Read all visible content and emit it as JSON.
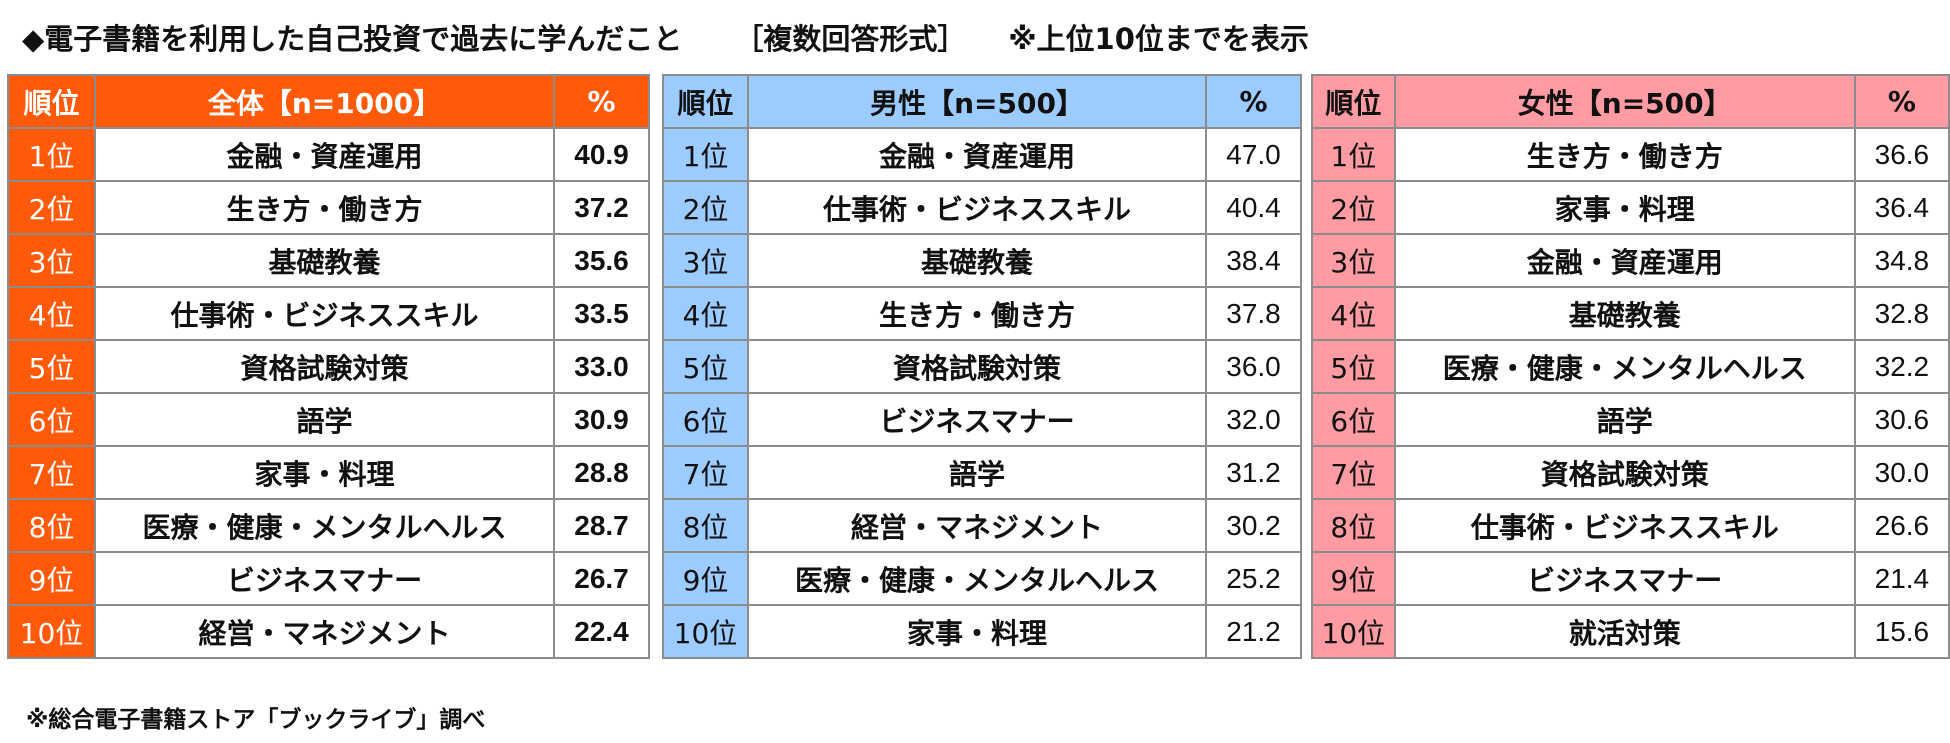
{
  "title": {
    "main": "◆電子書籍を利用した自己投資で過去に学んだこと",
    "format": "［複数回答形式］",
    "note": "※上位10位までを表示"
  },
  "footnote": "※総合電子書籍ストア「ブックライブ」調べ",
  "colors": {
    "all": "#ff5a0a",
    "male": "#9ccbff",
    "female": "#ff9ca3"
  },
  "chart_data": {
    "type": "table",
    "tables": [
      {
        "key": "all",
        "headers": [
          "順位",
          "全体【n=1000】",
          "%"
        ],
        "rows": [
          [
            "1位",
            "金融・資産運用",
            "40.9"
          ],
          [
            "2位",
            "生き方・働き方",
            "37.2"
          ],
          [
            "3位",
            "基礎教養",
            "35.6"
          ],
          [
            "4位",
            "仕事術・ビジネススキル",
            "33.5"
          ],
          [
            "5位",
            "資格試験対策",
            "33.0"
          ],
          [
            "6位",
            "語学",
            "30.9"
          ],
          [
            "7位",
            "家事・料理",
            "28.8"
          ],
          [
            "8位",
            "医療・健康・メンタルヘルス",
            "28.7"
          ],
          [
            "9位",
            "ビジネスマナー",
            "26.7"
          ],
          [
            "10位",
            "経営・マネジメント",
            "22.4"
          ]
        ]
      },
      {
        "key": "male",
        "headers": [
          "順位",
          "男性【n=500】",
          "%"
        ],
        "rows": [
          [
            "1位",
            "金融・資産運用",
            "47.0"
          ],
          [
            "2位",
            "仕事術・ビジネススキル",
            "40.4"
          ],
          [
            "3位",
            "基礎教養",
            "38.4"
          ],
          [
            "4位",
            "生き方・働き方",
            "37.8"
          ],
          [
            "5位",
            "資格試験対策",
            "36.0"
          ],
          [
            "6位",
            "ビジネスマナー",
            "32.0"
          ],
          [
            "7位",
            "語学",
            "31.2"
          ],
          [
            "8位",
            "経営・マネジメント",
            "30.2"
          ],
          [
            "9位",
            "医療・健康・メンタルヘルス",
            "25.2"
          ],
          [
            "10位",
            "家事・料理",
            "21.2"
          ]
        ]
      },
      {
        "key": "female",
        "headers": [
          "順位",
          "女性【n=500】",
          "%"
        ],
        "rows": [
          [
            "1位",
            "生き方・働き方",
            "36.6"
          ],
          [
            "2位",
            "家事・料理",
            "36.4"
          ],
          [
            "3位",
            "金融・資産運用",
            "34.8"
          ],
          [
            "4位",
            "基礎教養",
            "32.8"
          ],
          [
            "5位",
            "医療・健康・メンタルヘルス",
            "32.2"
          ],
          [
            "6位",
            "語学",
            "30.6"
          ],
          [
            "7位",
            "資格試験対策",
            "30.0"
          ],
          [
            "8位",
            "仕事術・ビジネススキル",
            "26.6"
          ],
          [
            "9位",
            "ビジネスマナー",
            "21.4"
          ],
          [
            "10位",
            "就活対策",
            "15.6"
          ]
        ]
      }
    ]
  }
}
